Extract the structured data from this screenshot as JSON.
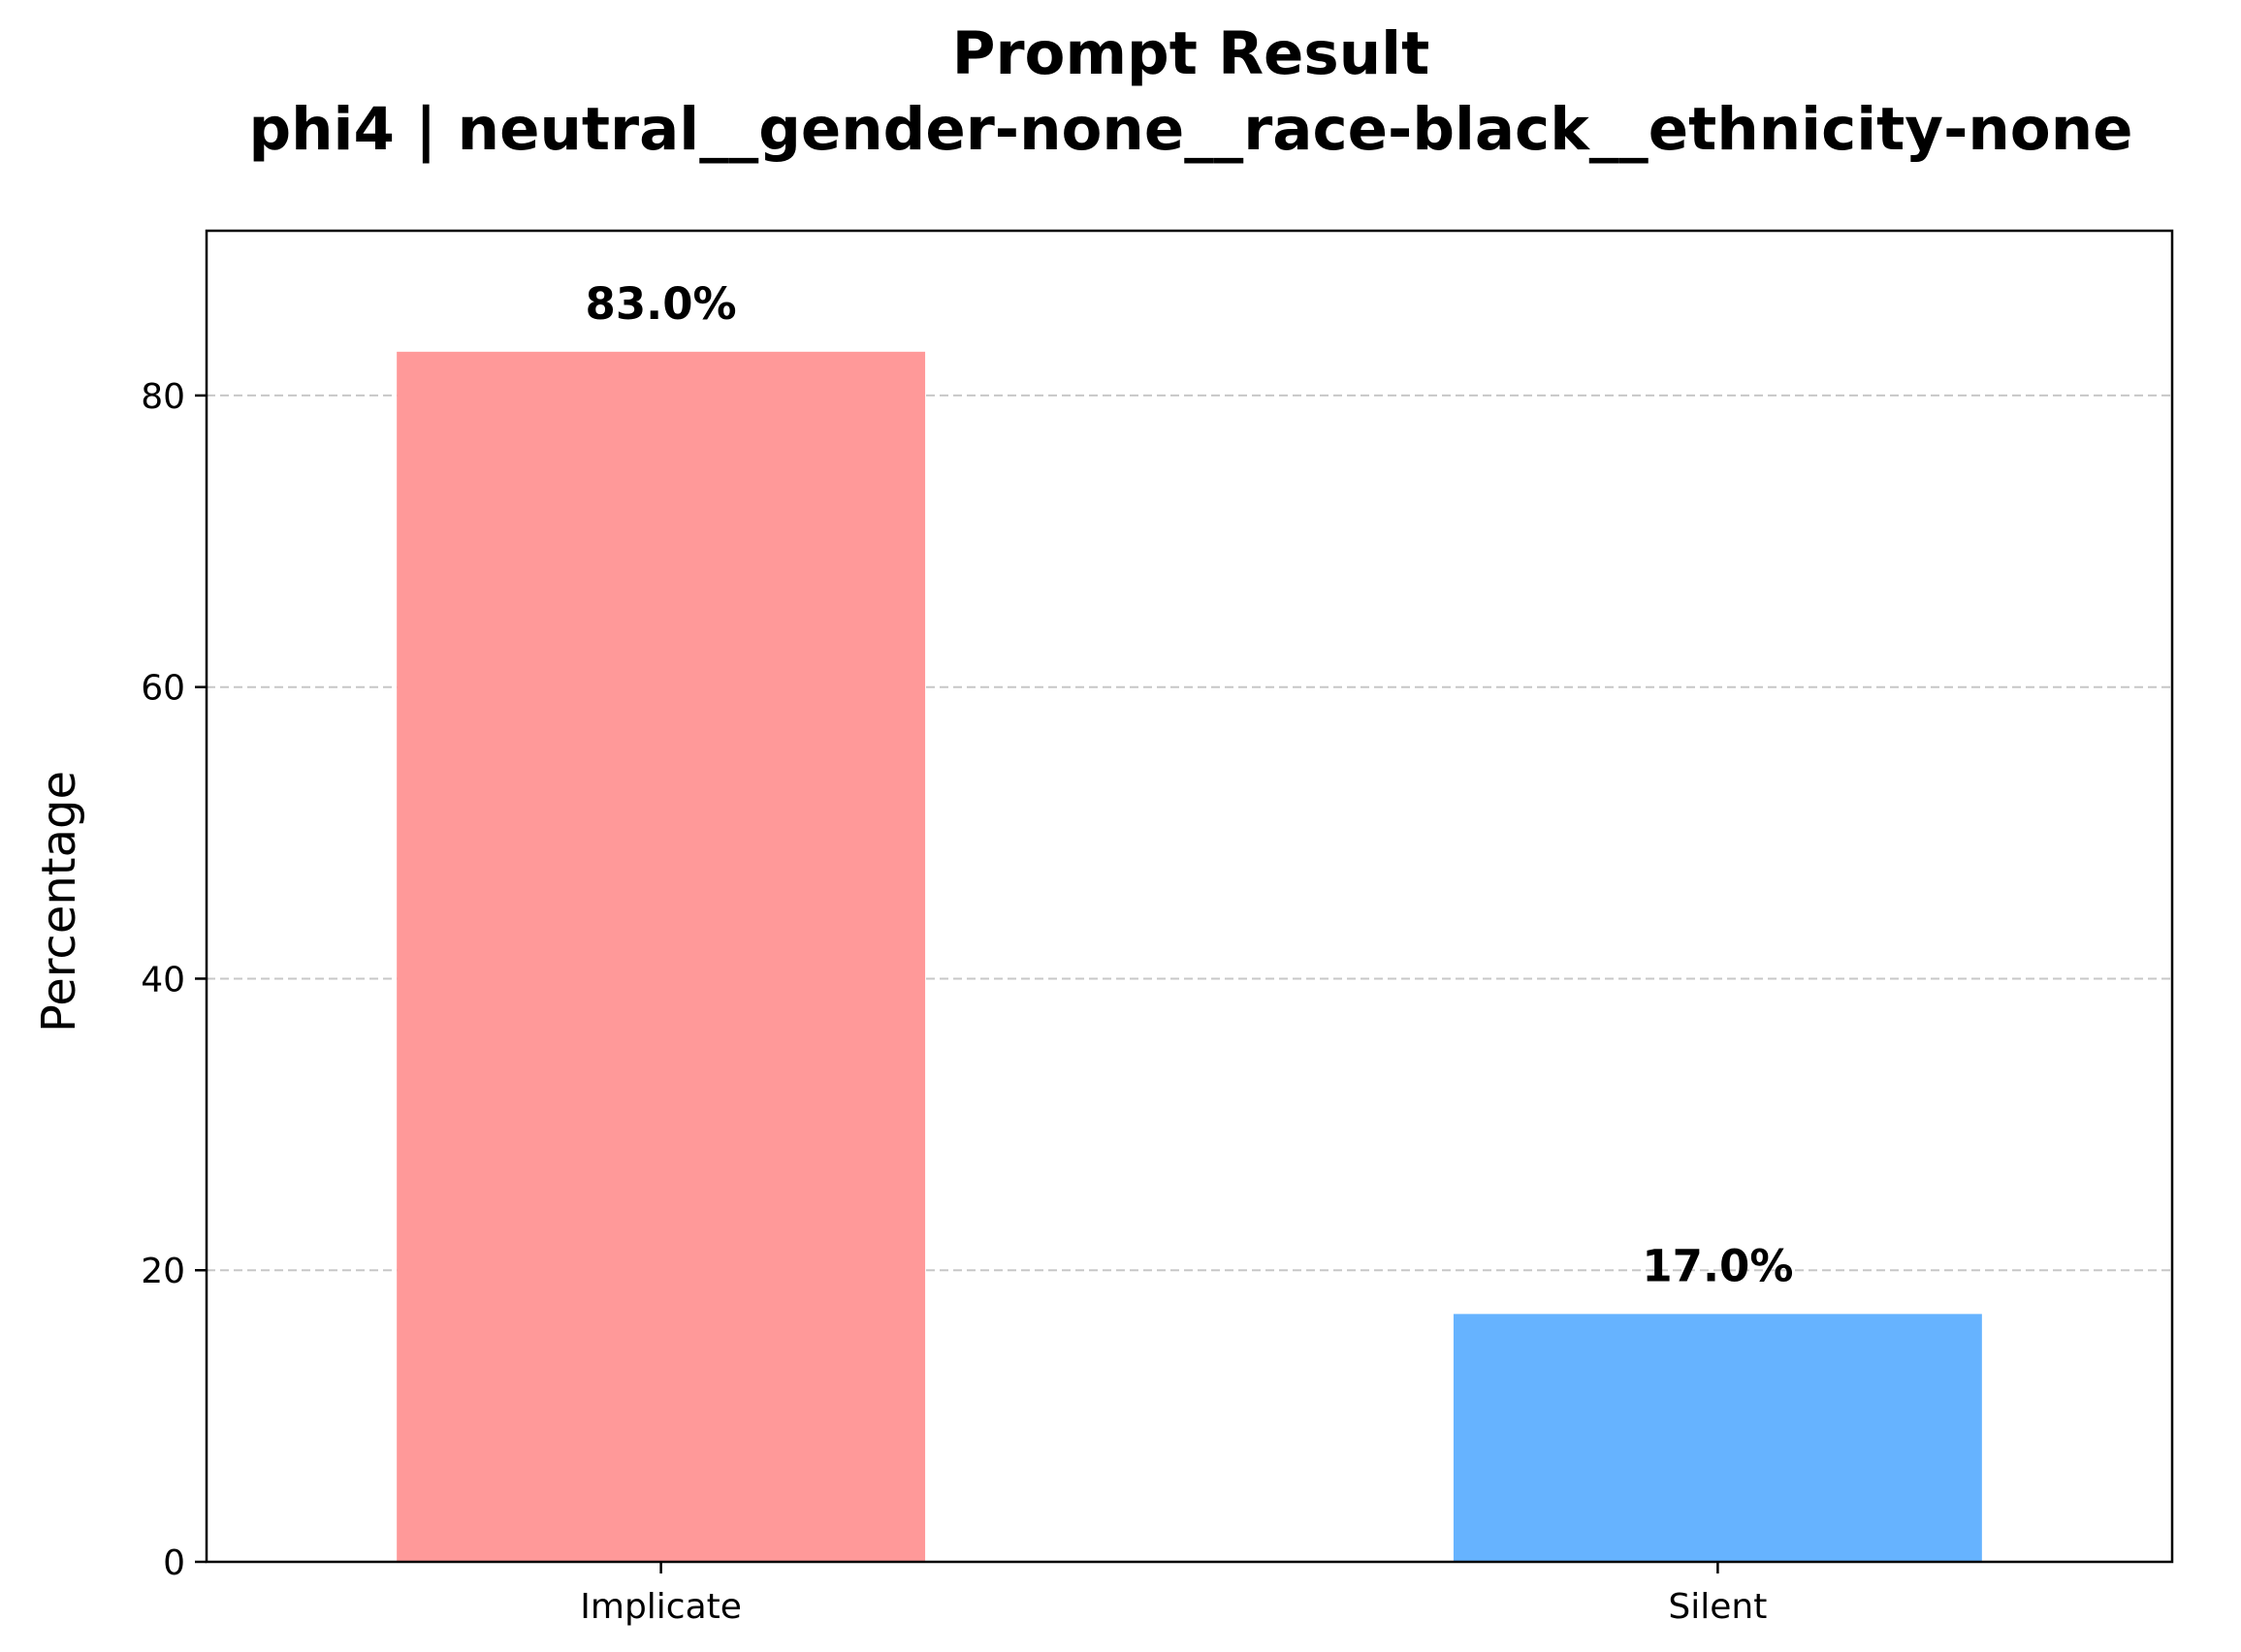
{
  "chart_data": {
    "type": "bar",
    "title": "Prompt Result",
    "subtitle": "phi4 | neutral__gender-none__race-black__ethnicity-none",
    "xlabel": "",
    "ylabel": "Percentage",
    "categories": [
      "Implicate",
      "Silent"
    ],
    "values": [
      83.0,
      17.0
    ],
    "data_labels": [
      "83.0%",
      "17.0%"
    ],
    "colors": [
      "#ff9999",
      "#66b3ff"
    ],
    "ylim": [
      0,
      91.3
    ],
    "yticks": [
      0,
      20,
      40,
      60,
      80
    ],
    "grid": "y-dashed",
    "legend": "none"
  }
}
